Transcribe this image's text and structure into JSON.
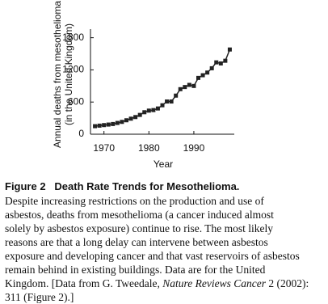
{
  "chart_data": {
    "type": "line",
    "y_label": [
      "Annual deaths from mesothelioma",
      "(in the United Kingdom)"
    ],
    "x_label": "Year",
    "x": [
      1968,
      1969,
      1970,
      1971,
      1972,
      1973,
      1974,
      1975,
      1976,
      1977,
      1978,
      1979,
      1980,
      1981,
      1982,
      1983,
      1984,
      1985,
      1986,
      1987,
      1988,
      1989,
      1990,
      1991,
      1992,
      1993,
      1994,
      1995,
      1996,
      1997,
      1998
    ],
    "values": [
      150,
      160,
      170,
      180,
      190,
      210,
      230,
      260,
      290,
      320,
      360,
      410,
      440,
      450,
      480,
      540,
      610,
      610,
      720,
      840,
      880,
      920,
      900,
      1050,
      1100,
      1150,
      1230,
      1340,
      1320,
      1370,
      1580
    ],
    "color": "#222222",
    "xlim": [
      1967,
      1999
    ],
    "xticks": [
      1970,
      1980,
      1990
    ],
    "ylim": [
      0,
      1900
    ],
    "yticks": [
      0,
      600,
      1200,
      1800
    ]
  },
  "caption": {
    "figure": "Figure 2",
    "title": "Death Rate Trends for Mesothelioma.",
    "lines": [
      "Despite increasing restrictions on the production and use of",
      "asbestos, deaths from mesothelioma (a cancer induced almost",
      "solely by asbestos exposure) continue to rise. The most likely",
      "reasons are that a long delay can intervene between asbestos",
      "exposure and developing cancer and that vast reservoirs of asbestos",
      "remain behind in existing buildings. Data are for the United"
    ],
    "source_line": {
      "before": "Kingdom. [Data from G. Tweedale, ",
      "italic": "Nature Reviews Cancer",
      "after": " 2 (2002):"
    },
    "last_line": "311 (Figure 2).]"
  }
}
